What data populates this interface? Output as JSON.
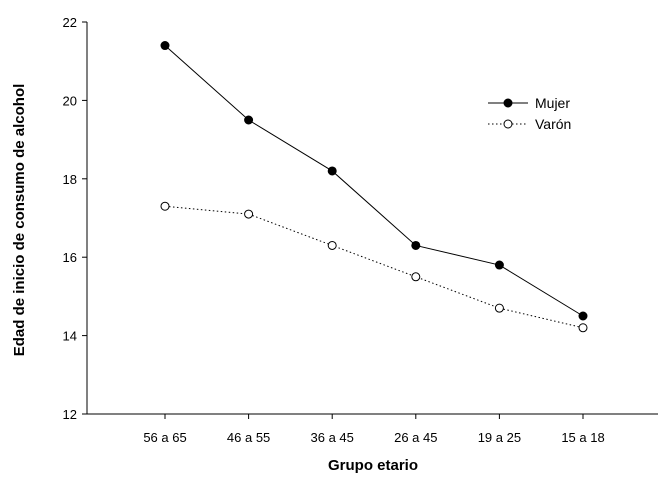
{
  "chart_data": {
    "type": "line",
    "title": "",
    "xlabel": "Grupo etario",
    "ylabel": "Edad de inicio de consumo de alcohol",
    "categories": [
      "56 a 65",
      "46 a 55",
      "36 a 45",
      "26 a 45",
      "19 a 25",
      "15 a 18"
    ],
    "ylim": [
      12,
      22
    ],
    "yticks": [
      12,
      14,
      16,
      18,
      20,
      22
    ],
    "grid": false,
    "legend_position": "top-right",
    "series": [
      {
        "name": "Mujer",
        "values": [
          21.4,
          19.5,
          18.2,
          16.3,
          15.8,
          14.5
        ],
        "marker": "filled-circle",
        "line_style": "solid",
        "color": "#000000"
      },
      {
        "name": "Varón",
        "values": [
          17.3,
          17.1,
          16.3,
          15.5,
          14.7,
          14.2
        ],
        "marker": "open-circle",
        "line_style": "dotted",
        "color": "#000000"
      }
    ]
  }
}
